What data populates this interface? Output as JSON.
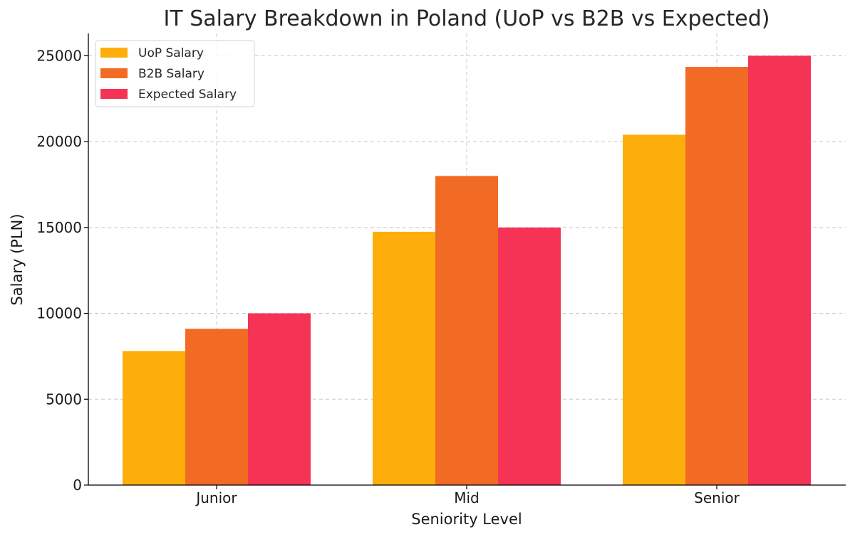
{
  "chart_data": {
    "type": "bar",
    "title": "IT Salary Breakdown in Poland (UoP vs B2B vs Expected)",
    "xlabel": "Seniority Level",
    "ylabel": "Salary (PLN)",
    "categories": [
      "Junior",
      "Mid",
      "Senior"
    ],
    "series": [
      {
        "name": "UoP Salary",
        "color": "#FDAE0A",
        "values": [
          7800,
          14750,
          20400
        ]
      },
      {
        "name": "B2B Salary",
        "color": "#F26B24",
        "values": [
          9100,
          18000,
          24350
        ]
      },
      {
        "name": "Expected Salary",
        "color": "#F43355",
        "values": [
          10000,
          15000,
          25000
        ]
      }
    ],
    "ylim": [
      0,
      26300
    ],
    "yticks": [
      0,
      5000,
      10000,
      15000,
      20000,
      25000
    ],
    "ytick_labels": [
      "0",
      "5000",
      "10000",
      "15000",
      "20000",
      "25000"
    ],
    "grid": true,
    "legend_position": "top-left"
  }
}
